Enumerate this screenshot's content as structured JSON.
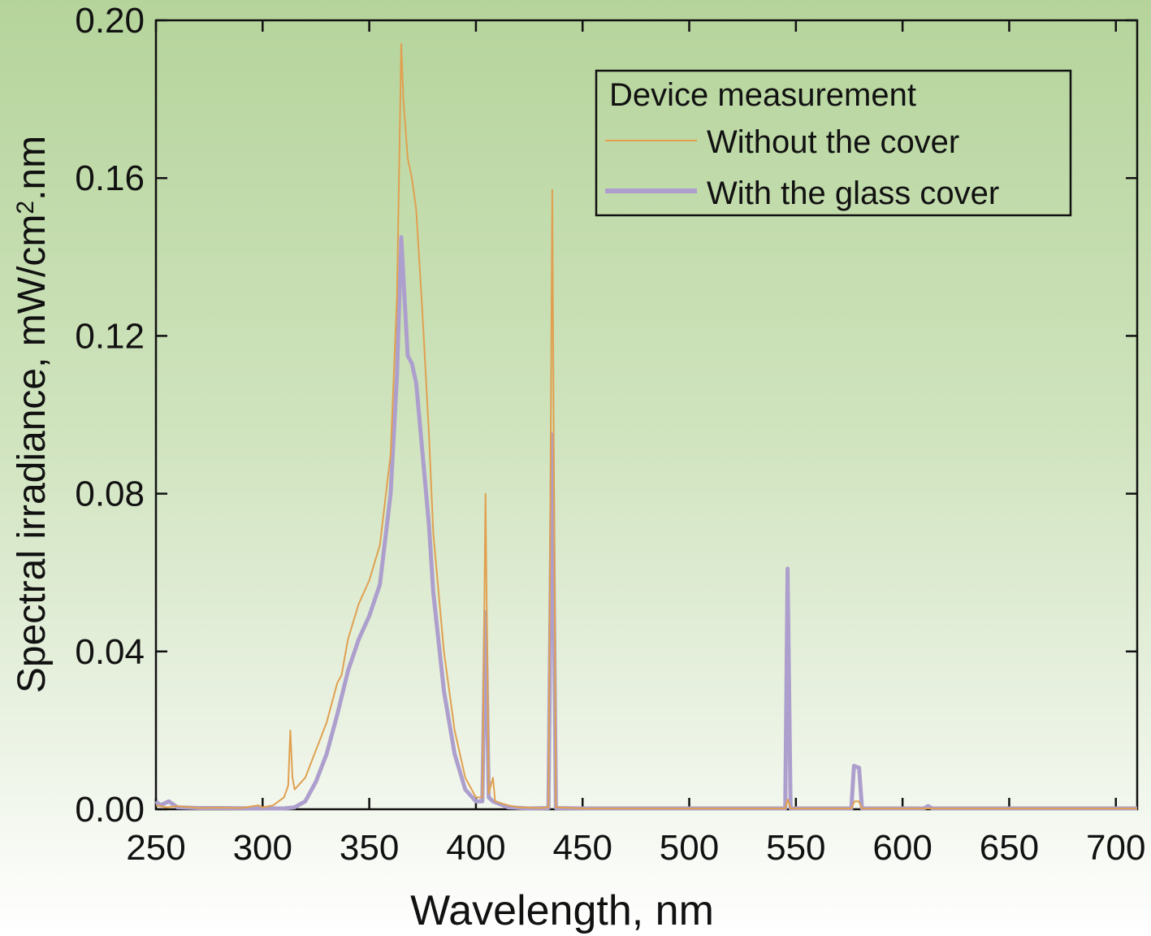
{
  "chart_data": {
    "type": "line",
    "title": "",
    "xlabel": "Wavelength, nm",
    "ylabel_main": "Spectral irradiance, mW/cm",
    "ylabel_sup": "2",
    "ylabel_tail": ".nm",
    "xlim": [
      250,
      710
    ],
    "ylim": [
      0,
      0.2
    ],
    "x_ticks": [
      250,
      300,
      350,
      400,
      450,
      500,
      550,
      600,
      650,
      700
    ],
    "x_tick_labels": [
      "250",
      "300",
      "350",
      "400",
      "450",
      "500",
      "550",
      "600",
      "650",
      "700"
    ],
    "y_ticks": [
      0,
      0.04,
      0.08,
      0.12,
      0.16,
      0.2
    ],
    "y_tick_labels": [
      "0.00",
      "0.04",
      "0.08",
      "0.12",
      "0.16",
      "0.20"
    ],
    "grid": false,
    "legend": {
      "title": "Device measurement",
      "position": "top-right"
    },
    "series": [
      {
        "name": "Without the cover",
        "color": "#e0a050",
        "points": [
          [
            250,
            0.001
          ],
          [
            255,
            0.0005
          ],
          [
            260,
            0.0008
          ],
          [
            270,
            0.0003
          ],
          [
            280,
            0.0004
          ],
          [
            290,
            0.0003
          ],
          [
            298,
            0.001
          ],
          [
            300,
            0.0005
          ],
          [
            305,
            0.001
          ],
          [
            310,
            0.003
          ],
          [
            312,
            0.006
          ],
          [
            313,
            0.02
          ],
          [
            314,
            0.008
          ],
          [
            315,
            0.005
          ],
          [
            320,
            0.008
          ],
          [
            325,
            0.015
          ],
          [
            330,
            0.022
          ],
          [
            335,
            0.032
          ],
          [
            337,
            0.034
          ],
          [
            340,
            0.043
          ],
          [
            345,
            0.052
          ],
          [
            350,
            0.058
          ],
          [
            355,
            0.067
          ],
          [
            360,
            0.09
          ],
          [
            363,
            0.13
          ],
          [
            365,
            0.194
          ],
          [
            366,
            0.18
          ],
          [
            368,
            0.165
          ],
          [
            370,
            0.16
          ],
          [
            372,
            0.152
          ],
          [
            375,
            0.125
          ],
          [
            378,
            0.095
          ],
          [
            380,
            0.07
          ],
          [
            385,
            0.04
          ],
          [
            390,
            0.02
          ],
          [
            395,
            0.008
          ],
          [
            400,
            0.003
          ],
          [
            403,
            0.003
          ],
          [
            404.5,
            0.08
          ],
          [
            406,
            0.004
          ],
          [
            408,
            0.008
          ],
          [
            409,
            0.002
          ],
          [
            415,
            0.001
          ],
          [
            420,
            0.0005
          ],
          [
            430,
            0.0003
          ],
          [
            434,
            0.0005
          ],
          [
            435.8,
            0.157
          ],
          [
            437.5,
            0.0005
          ],
          [
            450,
            0.0002
          ],
          [
            500,
            0.0002
          ],
          [
            545,
            0.0002
          ],
          [
            546.1,
            0.0025
          ],
          [
            547.5,
            0.0002
          ],
          [
            576,
            0.0002
          ],
          [
            577.5,
            0.002
          ],
          [
            579.5,
            0.002
          ],
          [
            581,
            0.0002
          ],
          [
            710,
            0.0002
          ]
        ]
      },
      {
        "name": "With the glass cover",
        "color": "#ad9fcd",
        "points": [
          [
            250,
            0.002
          ],
          [
            252,
            0.001
          ],
          [
            256,
            0.002
          ],
          [
            260,
            0.0005
          ],
          [
            270,
            0.0003
          ],
          [
            280,
            0.0003
          ],
          [
            300,
            0.0002
          ],
          [
            310,
            0.0002
          ],
          [
            315,
            0.0005
          ],
          [
            320,
            0.002
          ],
          [
            325,
            0.007
          ],
          [
            330,
            0.014
          ],
          [
            335,
            0.024
          ],
          [
            340,
            0.035
          ],
          [
            345,
            0.043
          ],
          [
            350,
            0.049
          ],
          [
            355,
            0.057
          ],
          [
            360,
            0.08
          ],
          [
            363,
            0.11
          ],
          [
            365,
            0.145
          ],
          [
            366,
            0.135
          ],
          [
            368,
            0.115
          ],
          [
            370,
            0.113
          ],
          [
            372,
            0.108
          ],
          [
            375,
            0.09
          ],
          [
            378,
            0.072
          ],
          [
            380,
            0.055
          ],
          [
            385,
            0.03
          ],
          [
            390,
            0.014
          ],
          [
            395,
            0.005
          ],
          [
            400,
            0.002
          ],
          [
            403,
            0.002
          ],
          [
            404.5,
            0.05
          ],
          [
            406,
            0.003
          ],
          [
            408,
            0.002
          ],
          [
            415,
            0.0005
          ],
          [
            425,
            0.0002
          ],
          [
            434,
            0.0003
          ],
          [
            435.8,
            0.095
          ],
          [
            437.5,
            0.0003
          ],
          [
            450,
            0.0002
          ],
          [
            500,
            0.0002
          ],
          [
            545,
            0.0002
          ],
          [
            546.1,
            0.061
          ],
          [
            547.5,
            0.0002
          ],
          [
            576,
            0.0002
          ],
          [
            577.2,
            0.011
          ],
          [
            579.6,
            0.0105
          ],
          [
            581,
            0.0002
          ],
          [
            610,
            0.0002
          ],
          [
            612,
            0.0008
          ],
          [
            614,
            0.0002
          ],
          [
            710,
            0.0002
          ]
        ]
      }
    ]
  }
}
